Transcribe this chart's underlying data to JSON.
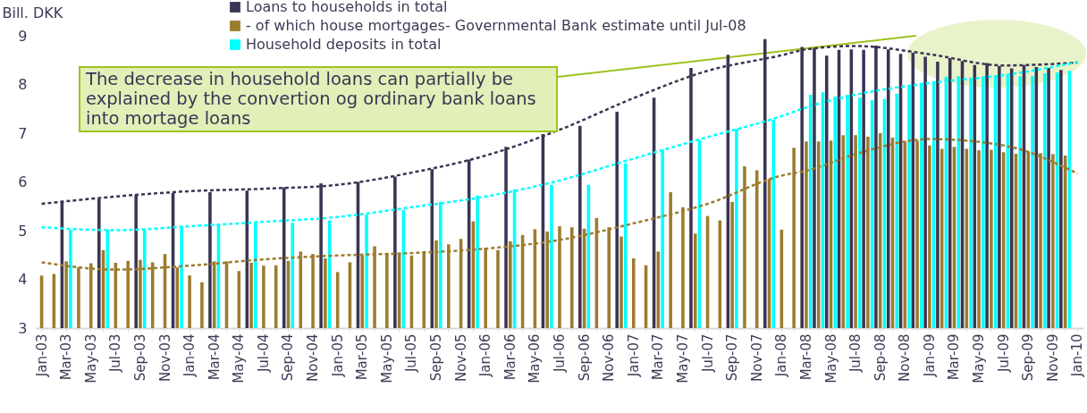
{
  "chart_data": {
    "type": "bar",
    "ylabel": "Bill. DKK",
    "ylim": [
      3,
      9
    ],
    "yticks": [
      3,
      4,
      5,
      6,
      7,
      8,
      9
    ],
    "legend": "top",
    "grid": false,
    "categories": [
      "Jan-03",
      null,
      "Mar-03",
      null,
      "May-03",
      null,
      "Jul-03",
      null,
      "Sep-03",
      null,
      "Nov-03",
      null,
      "Jan-04",
      null,
      "Mar-04",
      null,
      "May-04",
      null,
      "Jul-04",
      null,
      "Sep-04",
      null,
      "Nov-04",
      null,
      "Jan-05",
      null,
      "Mar-05",
      null,
      "May-05",
      null,
      "Jul-05",
      null,
      "Sep-05",
      null,
      "Nov-05",
      null,
      "Jan-06",
      null,
      "Mar-06",
      null,
      "May-06",
      null,
      "Jul-06",
      null,
      "Sep-06",
      null,
      "Nov-06",
      null,
      "Jan-07",
      null,
      "Mar-07",
      null,
      "May-07",
      null,
      "Jul-07",
      null,
      "Sep-07",
      null,
      "Nov-07",
      null,
      "Jan-08",
      null,
      "Mar-08",
      null,
      "May-08",
      null,
      "Jul-08",
      null,
      "Sep-08",
      null,
      "Nov-08",
      null,
      "Jan-09",
      null,
      "Mar-09",
      null,
      "May-09",
      null,
      "Jul-09",
      null,
      "Sep-09",
      null,
      "Nov-09",
      null,
      "Jan-10"
    ],
    "series": [
      {
        "name": "Loans to households in total",
        "color": "#3b3553",
        "values": [
          null,
          null,
          5.61,
          null,
          null,
          5.65,
          null,
          null,
          5.73,
          null,
          null,
          5.77,
          null,
          null,
          5.79,
          null,
          null,
          5.82,
          null,
          null,
          5.89,
          null,
          null,
          5.97,
          null,
          null,
          6.0,
          null,
          null,
          6.11,
          null,
          null,
          6.26,
          null,
          null,
          6.46,
          null,
          null,
          6.72,
          null,
          null,
          6.98,
          null,
          null,
          7.15,
          null,
          null,
          7.44,
          null,
          null,
          7.73,
          null,
          null,
          8.34,
          null,
          null,
          8.61,
          null,
          null,
          8.93,
          null,
          null,
          8.77,
          8.75,
          8.59,
          8.71,
          8.72,
          8.71,
          8.8,
          8.72,
          8.63,
          8.65,
          8.57,
          8.47,
          8.54,
          8.48,
          8.4,
          8.44,
          8.38,
          8.33,
          8.4,
          8.36,
          8.34,
          8.3,
          null
        ]
      },
      {
        "name": " - of which house mortgages- Governmental Bank estimate until Jul-08",
        "color": "#9c7c2e",
        "values": [
          4.08,
          4.11,
          4.37,
          4.25,
          4.33,
          4.6,
          4.34,
          4.38,
          4.4,
          4.35,
          4.52,
          4.25,
          4.08,
          3.94,
          4.37,
          4.37,
          4.17,
          4.34,
          4.28,
          4.29,
          4.38,
          4.57,
          4.52,
          4.43,
          4.15,
          4.35,
          4.49,
          4.68,
          4.54,
          4.54,
          4.49,
          4.58,
          4.8,
          4.72,
          4.83,
          5.19,
          4.65,
          4.6,
          4.78,
          4.91,
          5.03,
          4.98,
          5.09,
          5.07,
          5.04,
          5.26,
          5.07,
          4.88,
          4.43,
          4.29,
          4.57,
          5.79,
          5.48,
          4.94,
          5.3,
          5.21,
          5.59,
          6.32,
          6.24,
          6.06,
          5.02,
          6.7,
          6.83,
          6.83,
          6.85,
          6.96,
          6.96,
          6.93,
          7.0,
          6.91,
          6.83,
          6.85,
          6.75,
          6.68,
          6.72,
          6.68,
          6.65,
          6.66,
          6.61,
          6.58,
          6.63,
          6.59,
          6.57,
          6.54,
          null
        ]
      },
      {
        "name": "Household deposits in total",
        "color": "#00ffff",
        "values": [
          null,
          null,
          5.02,
          null,
          null,
          5.02,
          null,
          null,
          5.02,
          null,
          null,
          5.09,
          null,
          null,
          5.13,
          null,
          null,
          5.17,
          null,
          null,
          5.16,
          null,
          null,
          5.21,
          null,
          null,
          5.33,
          null,
          null,
          5.42,
          null,
          null,
          5.59,
          null,
          null,
          5.72,
          null,
          null,
          5.85,
          null,
          null,
          5.94,
          null,
          null,
          5.94,
          null,
          null,
          6.38,
          null,
          null,
          6.66,
          null,
          null,
          6.86,
          null,
          null,
          7.09,
          null,
          null,
          7.28,
          null,
          null,
          7.79,
          7.84,
          7.75,
          7.79,
          7.73,
          7.68,
          7.7,
          7.81,
          7.96,
          8.03,
          8.07,
          8.16,
          8.17,
          8.13,
          8.16,
          8.17,
          8.21,
          8.17,
          8.17,
          8.23,
          8.25,
          8.28,
          null
        ]
      },
      {
        "type": "line",
        "line_style": "dashed",
        "color": "#3b3553",
        "x": [
          "Jan-03",
          "Jul-03",
          "Jan-04",
          "Jul-04",
          "Jan-05",
          "Jul-05",
          "Jan-06",
          "Jul-06",
          "Jan-07",
          "Jul-07",
          "Jan-08",
          "Mar-08",
          "Jul-08",
          "Jan-09",
          "Jul-09",
          "Jan-10"
        ],
        "values": [
          5.55,
          5.7,
          5.81,
          5.86,
          5.94,
          6.19,
          6.54,
          7.07,
          7.72,
          8.28,
          8.6,
          8.72,
          8.79,
          8.62,
          8.39,
          8.45
        ]
      },
      {
        "type": "line",
        "line_style": "dashed",
        "color": "#9c7c2e",
        "x": [
          "Jan-03",
          "Jul-03",
          "Jan-04",
          "Jul-04",
          "Jan-05",
          "Jul-05",
          "Jan-06",
          "Jul-06",
          "Jan-07",
          "Jul-07",
          "Jan-08",
          "Mar-08",
          "Jul-08",
          "Jan-09",
          "Jul-09",
          "Jan-10"
        ],
        "values": [
          4.35,
          4.2,
          4.28,
          4.41,
          4.49,
          4.54,
          4.63,
          4.81,
          5.15,
          5.55,
          6.13,
          6.23,
          6.57,
          6.88,
          6.75,
          6.17
        ]
      },
      {
        "type": "line",
        "line_style": "dashed",
        "color": "#00ffff",
        "x": [
          "Jan-03",
          "Jul-03",
          "Jan-04",
          "Jul-04",
          "Jan-05",
          "Jul-05",
          "Jan-06",
          "Jul-06",
          "Jan-07",
          "Jul-07",
          "Jan-08",
          "Mar-08",
          "Jul-08",
          "Jan-09",
          "Jul-09",
          "Jan-10"
        ],
        "values": [
          5.07,
          5.01,
          5.09,
          5.18,
          5.28,
          5.48,
          5.7,
          6.03,
          6.48,
          6.92,
          7.35,
          7.53,
          7.79,
          8.03,
          8.19,
          8.46
        ]
      }
    ],
    "annotations": [
      "The decrease in household loans can partially be explained by the convertion og ordinary bank loans into mortage loans"
    ]
  }
}
